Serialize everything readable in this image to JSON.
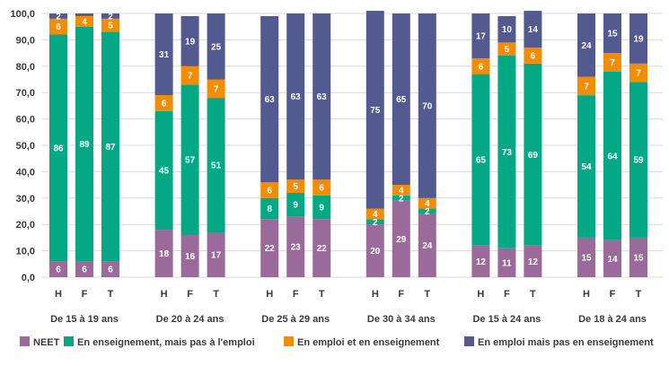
{
  "chart_data": {
    "type": "bar",
    "stacked": true,
    "ylim": [
      0,
      100
    ],
    "yticks": [
      "0,0",
      "10,0",
      "20,0",
      "30,0",
      "40,0",
      "50,0",
      "60,0",
      "70,0",
      "80,0",
      "90,0",
      "100,0"
    ],
    "grid": true,
    "legend_position": "bottom",
    "groups": [
      {
        "label": "De 15 à 19 ans",
        "categories": [
          "H",
          "F",
          "T"
        ]
      },
      {
        "label": "De 20 à 24 ans",
        "categories": [
          "H",
          "F",
          "T"
        ]
      },
      {
        "label": "De 25 à 29 ans",
        "categories": [
          "H",
          "F",
          "T"
        ]
      },
      {
        "label": "De 30 à 34 ans",
        "categories": [
          "H",
          "F",
          "T"
        ]
      },
      {
        "label": "De 15 à 24 ans",
        "categories": [
          "H",
          "F",
          "T"
        ]
      },
      {
        "label": "De 18 à 24 ans",
        "categories": [
          "H",
          "F",
          "T"
        ]
      }
    ],
    "series": [
      {
        "name": "NEET",
        "color": "#9a6b9a",
        "values": [
          6,
          6,
          6,
          18,
          16,
          17,
          22,
          23,
          22,
          20,
          29,
          24,
          12,
          11,
          12,
          15,
          14,
          15
        ]
      },
      {
        "name": "En enseignement, mais pas à l'emploi",
        "color": "#05a884",
        "values": [
          86,
          89,
          87,
          45,
          57,
          51,
          8,
          9,
          9,
          2,
          2,
          2,
          65,
          73,
          69,
          54,
          64,
          59
        ]
      },
      {
        "name": "En emploi et en enseignement",
        "color": "#f28c00",
        "values": [
          6,
          4,
          5,
          6,
          7,
          7,
          6,
          5,
          6,
          4,
          4,
          4,
          6,
          5,
          6,
          7,
          7,
          7
        ]
      },
      {
        "name": "En emploi mais pas en enseignement",
        "color": "#535a90",
        "values": [
          2,
          1,
          2,
          31,
          19,
          25,
          63,
          63,
          63,
          75,
          65,
          70,
          17,
          10,
          14,
          24,
          15,
          19
        ]
      }
    ],
    "data_labels": [
      [
        "6",
        "6",
        "6",
        "18",
        "16",
        "17",
        "22",
        "23",
        "22",
        "20",
        "29",
        "24",
        "12",
        "11",
        "12",
        "15",
        "14",
        "15"
      ],
      [
        "86",
        "89",
        "87",
        "45",
        "57",
        "51",
        "8",
        "9",
        "9",
        "2",
        "2",
        "2",
        "65",
        "73",
        "69",
        "54",
        "64",
        "59"
      ],
      [
        "6",
        "4",
        "5",
        "6",
        "7",
        "7",
        "6",
        "5",
        "6",
        "4",
        "4",
        "4",
        "6",
        "5",
        "6",
        "7",
        "7",
        "7"
      ],
      [
        "2",
        "",
        "2",
        "31",
        "19",
        "25",
        "63",
        "63",
        "63",
        "75",
        "65",
        "70",
        "17",
        "10",
        "14",
        "24",
        "15",
        "19"
      ]
    ]
  }
}
